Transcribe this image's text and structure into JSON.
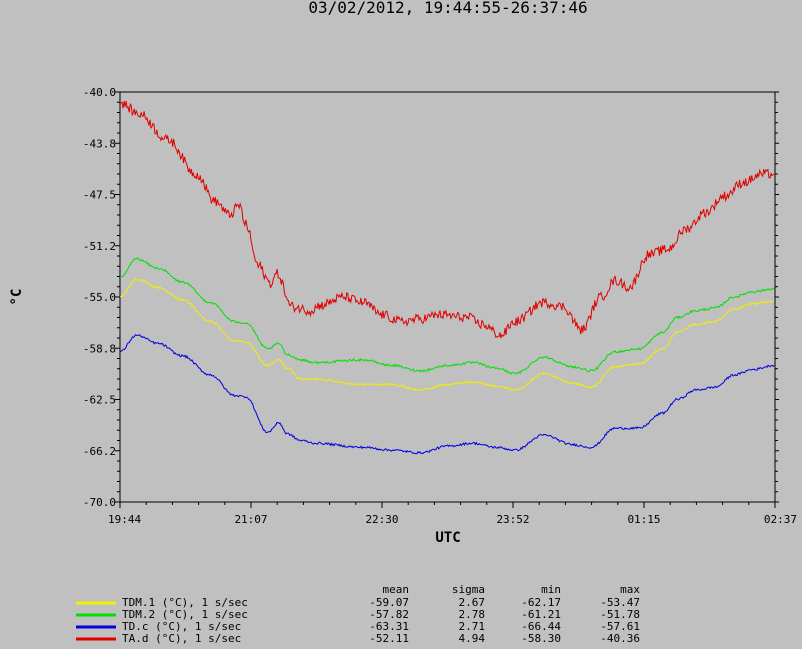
{
  "chart_data": {
    "type": "line",
    "title": "03/02/2012, 19:44:55-26:37:46",
    "xlabel": "UTC",
    "ylabel": "°C",
    "x_ticks": [
      "19:44",
      "21:07",
      "22:30",
      "23:52",
      "01:15",
      "02:37"
    ],
    "y_ticks": [
      "-40.0",
      "-43.8",
      "-47.5",
      "-51.2",
      "-55.0",
      "-58.8",
      "-62.5",
      "-66.2",
      "-70.0"
    ],
    "ylim": [
      -70.0,
      -40.0
    ],
    "xlim_hours": [
      19.7486,
      26.6294
    ],
    "grid": false,
    "legend_position": "bottom-left",
    "stat_headers": [
      "mean",
      "sigma",
      "min",
      "max"
    ],
    "series": [
      {
        "name": "TDM.1 (°C), 1 s/sec",
        "color": "#f0f000",
        "noise": 0.08,
        "stats": [
          "-59.07",
          "2.67",
          "-62.17",
          "-53.47"
        ],
        "x": [
          19.75,
          19.92,
          20.15,
          20.4,
          20.7,
          20.95,
          21.07,
          21.3,
          21.42,
          21.5,
          21.65,
          21.8,
          22.3,
          22.6,
          22.9,
          23.2,
          23.45,
          23.7,
          23.9,
          24.2,
          24.5,
          24.7,
          24.95,
          25.2,
          25.45,
          25.6,
          25.8,
          26.0,
          26.2,
          26.4,
          26.62
        ],
        "y": [
          -55.0,
          -53.7,
          -54.3,
          -55.2,
          -56.8,
          -58.2,
          -58.3,
          -60.0,
          -59.6,
          -60.2,
          -61.0,
          -61.0,
          -61.4,
          -61.4,
          -61.8,
          -61.4,
          -61.2,
          -61.5,
          -61.8,
          -60.6,
          -61.3,
          -61.6,
          -60.1,
          -59.9,
          -58.8,
          -57.6,
          -57.0,
          -56.8,
          -55.9,
          -55.5,
          -55.3
        ]
      },
      {
        "name": "TDM.2 (°C), 1 s/sec",
        "color": "#00e000",
        "noise": 0.08,
        "stats": [
          "-57.82",
          "2.78",
          "-61.21",
          "-51.78"
        ],
        "x": [
          19.75,
          19.92,
          20.15,
          20.4,
          20.7,
          20.95,
          21.07,
          21.3,
          21.42,
          21.5,
          21.65,
          21.8,
          22.3,
          22.6,
          22.9,
          23.2,
          23.45,
          23.7,
          23.9,
          24.2,
          24.5,
          24.7,
          24.95,
          25.2,
          25.45,
          25.6,
          25.8,
          26.0,
          26.2,
          26.4,
          26.62
        ],
        "y": [
          -53.6,
          -52.2,
          -52.9,
          -53.9,
          -55.4,
          -56.8,
          -56.9,
          -58.8,
          -58.4,
          -59.2,
          -59.6,
          -59.8,
          -59.6,
          -60.0,
          -60.4,
          -60.0,
          -59.8,
          -60.2,
          -60.6,
          -59.4,
          -60.1,
          -60.4,
          -59.0,
          -58.8,
          -57.6,
          -56.5,
          -56.0,
          -55.8,
          -55.0,
          -54.6,
          -54.4
        ]
      },
      {
        "name": "TD.c (°C), 1 s/sec",
        "color": "#0000e0",
        "noise": 0.08,
        "stats": [
          "-63.31",
          "2.71",
          "-66.44",
          "-57.61"
        ],
        "x": [
          19.75,
          19.92,
          20.15,
          20.4,
          20.7,
          20.95,
          21.07,
          21.3,
          21.42,
          21.5,
          21.65,
          21.8,
          22.3,
          22.6,
          22.9,
          23.2,
          23.45,
          23.7,
          23.9,
          24.2,
          24.5,
          24.7,
          24.95,
          25.2,
          25.45,
          25.6,
          25.8,
          26.0,
          26.2,
          26.4,
          26.62
        ],
        "y": [
          -59.0,
          -57.8,
          -58.4,
          -59.3,
          -60.7,
          -62.2,
          -62.3,
          -64.9,
          -64.2,
          -65.0,
          -65.5,
          -65.7,
          -66.0,
          -66.2,
          -66.4,
          -65.9,
          -65.7,
          -66.0,
          -66.2,
          -65.1,
          -65.8,
          -66.0,
          -64.6,
          -64.6,
          -63.5,
          -62.5,
          -61.8,
          -61.6,
          -60.7,
          -60.3,
          -60.0
        ]
      },
      {
        "name": "TA.d (°C), 1 s/sec",
        "color": "#e00000",
        "noise": 0.35,
        "stats": [
          "-52.11",
          "4.94",
          "-58.30",
          "-40.36"
        ],
        "x": [
          19.75,
          19.95,
          20.25,
          20.55,
          20.75,
          20.9,
          21.0,
          21.07,
          21.2,
          21.33,
          21.4,
          21.55,
          21.75,
          21.85,
          22.1,
          22.3,
          22.5,
          22.7,
          22.9,
          23.1,
          23.4,
          23.55,
          23.75,
          23.9,
          24.2,
          24.4,
          24.6,
          24.8,
          24.95,
          25.1,
          25.3,
          25.5,
          25.7,
          25.9,
          26.1,
          26.3,
          26.5,
          26.62
        ],
        "y": [
          -40.8,
          -41.6,
          -43.5,
          -46.0,
          -48.0,
          -49.0,
          -48.3,
          -49.7,
          -52.7,
          -54.0,
          -53.3,
          -55.7,
          -56.0,
          -55.6,
          -55.0,
          -55.4,
          -56.3,
          -56.8,
          -56.6,
          -56.3,
          -56.5,
          -57.0,
          -57.8,
          -56.8,
          -55.4,
          -55.7,
          -57.4,
          -55.0,
          -53.8,
          -54.3,
          -51.9,
          -51.5,
          -50.0,
          -48.8,
          -47.6,
          -46.6,
          -46.0,
          -46.0
        ]
      }
    ]
  }
}
